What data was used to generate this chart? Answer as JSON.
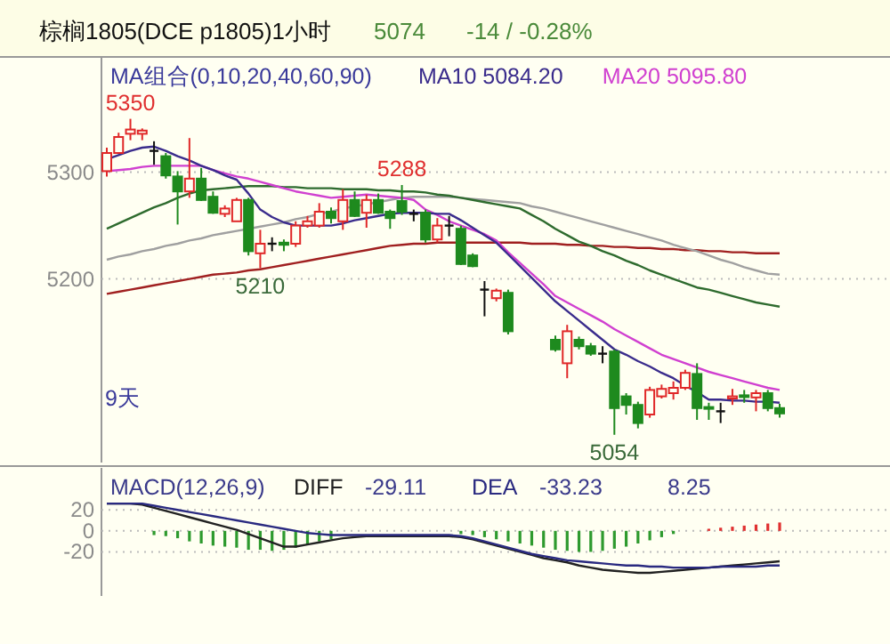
{
  "chart_data": [
    {
      "type": "candlestick",
      "title": "棕榈1805(DCE p1805)1小时",
      "subtitle": "MA组合(0,10,20,40,60,90)",
      "categories": [
        null,
        null,
        null,
        null,
        null,
        null,
        null,
        null,
        null,
        null,
        null,
        null,
        null,
        null,
        null,
        null,
        null,
        null,
        null,
        null,
        null,
        null,
        null,
        null,
        null,
        null,
        null,
        null,
        null,
        null,
        null,
        null,
        null,
        null,
        null,
        null,
        null,
        null,
        null,
        null,
        null,
        null,
        null,
        null,
        null,
        null,
        null,
        null,
        null,
        null,
        null,
        null,
        null,
        null,
        null,
        null,
        null,
        null
      ],
      "ohlc": [
        [
          5301,
          5323,
          5296,
          5318
        ],
        [
          5318,
          5337,
          5318,
          5333
        ],
        [
          5336,
          5350,
          5330,
          5340
        ],
        [
          5336,
          5341,
          5330,
          5339
        ],
        [
          5320,
          5329,
          5307,
          5320
        ],
        [
          5315,
          5318,
          5294,
          5297
        ],
        [
          5296,
          5301,
          5251,
          5282
        ],
        [
          5282,
          5332,
          5276,
          5294
        ],
        [
          5294,
          5304,
          5273,
          5274
        ],
        [
          5277,
          5282,
          5261,
          5262
        ],
        [
          5261,
          5269,
          5258,
          5266
        ],
        [
          5254,
          5276,
          5254,
          5274
        ],
        [
          5274,
          5276,
          5222,
          5226
        ],
        [
          5224,
          5246,
          5210,
          5233
        ],
        [
          5233,
          5239,
          5226,
          5233
        ],
        [
          5234,
          5237,
          5226,
          5232
        ],
        [
          5233,
          5254,
          5230,
          5250
        ],
        [
          5250,
          5259,
          5248,
          5254
        ],
        [
          5250,
          5271,
          5248,
          5263
        ],
        [
          5263,
          5267,
          5252,
          5257
        ],
        [
          5254,
          5284,
          5246,
          5274
        ],
        [
          5274,
          5282,
          5258,
          5259
        ],
        [
          5262,
          5279,
          5248,
          5274
        ],
        [
          5274,
          5280,
          5261,
          5262
        ],
        [
          5263,
          5265,
          5247,
          5257
        ],
        [
          5273,
          5288,
          5260,
          5263
        ],
        [
          5261,
          5265,
          5254,
          5261
        ],
        [
          5262,
          5265,
          5234,
          5237
        ],
        [
          5237,
          5257,
          5234,
          5250
        ],
        [
          5250,
          5259,
          5240,
          5250
        ],
        [
          5247,
          5250,
          5213,
          5214
        ],
        [
          5222,
          5224,
          5211,
          5212
        ],
        [
          5190,
          5198,
          5165,
          5190
        ],
        [
          5182,
          5191,
          5179,
          5189
        ],
        [
          5187,
          5190,
          5148,
          5151
        ],
        null,
        null,
        null,
        [
          5143,
          5147,
          5132,
          5134
        ],
        [
          5121,
          5157,
          5107,
          5151
        ],
        [
          5143,
          5146,
          5134,
          5137
        ],
        [
          5137,
          5140,
          5128,
          5130
        ],
        [
          5130,
          5137,
          5121,
          5130
        ],
        [
          5132,
          5134,
          5054,
          5079
        ],
        [
          5090,
          5093,
          5073,
          5082
        ],
        [
          5082,
          5085,
          5060,
          5065
        ],
        [
          5073,
          5099,
          5070,
          5096
        ],
        [
          5090,
          5101,
          5088,
          5097
        ],
        [
          5093,
          5104,
          5087,
          5098
        ],
        [
          5098,
          5115,
          5096,
          5112
        ],
        [
          5111,
          5121,
          5068,
          5079
        ],
        [
          5080,
          5084,
          5068,
          5079
        ],
        [
          5076,
          5084,
          5065,
          5076
        ],
        [
          5088,
          5097,
          5082,
          5090
        ],
        [
          5091,
          5096,
          5084,
          5090
        ],
        [
          5089,
          5096,
          5076,
          5093
        ],
        [
          5093,
          5096,
          5076,
          5079
        ],
        [
          5079,
          5083,
          5070,
          5074
        ]
      ],
      "series": [
        {
          "type": "line",
          "color": "#a02020",
          "values": [
            5186,
            5188,
            5190,
            5192,
            5194,
            5196,
            5198,
            5200,
            5202,
            5204,
            5205,
            5206,
            5208,
            5209,
            5211,
            5213,
            5215,
            5217,
            5219,
            5221,
            5223,
            5225,
            5227,
            5229,
            5231,
            5232,
            5233,
            5233,
            5234,
            5234,
            5234,
            5234,
            5234,
            5234,
            5234,
            5234,
            5233,
            5233,
            5233,
            5232,
            5232,
            5231,
            5231,
            5230,
            5230,
            5229,
            5229,
            5228,
            5228,
            5227,
            5227,
            5226,
            5226,
            5225,
            5225,
            5224,
            5224,
            5224
          ]
        },
        {
          "type": "line",
          "color": "#a0a0a0",
          "values": [
            5218,
            5221,
            5223,
            5226,
            5228,
            5231,
            5233,
            5236,
            5238,
            5241,
            5243,
            5245,
            5247,
            5249,
            5251,
            5253,
            5256,
            5258,
            5261,
            5263,
            5266,
            5268,
            5270,
            5272,
            5274,
            5276,
            5277,
            5277,
            5277,
            5277,
            5276,
            5275,
            5274,
            5273,
            5272,
            5271,
            5268,
            5266,
            5263,
            5260,
            5257,
            5254,
            5251,
            5248,
            5245,
            5242,
            5239,
            5236,
            5232,
            5229,
            5226,
            5222,
            5218,
            5215,
            5211,
            5208,
            5205,
            5204
          ]
        },
        {
          "type": "line",
          "color": "#2e6b2e",
          "values": [
            5247,
            5252,
            5257,
            5262,
            5267,
            5271,
            5276,
            5280,
            5283,
            5284,
            5285,
            5286,
            5287,
            5287,
            5287,
            5286,
            5286,
            5285,
            5285,
            5285,
            5284,
            5284,
            5284,
            5283,
            5283,
            5282,
            5282,
            5281,
            5279,
            5278,
            5276,
            5274,
            5272,
            5270,
            5268,
            5266,
            5260,
            5254,
            5247,
            5241,
            5235,
            5231,
            5226,
            5222,
            5217,
            5213,
            5208,
            5204,
            5200,
            5196,
            5192,
            5190,
            5187,
            5184,
            5181,
            5178,
            5176,
            5174
          ]
        },
        {
          "type": "line",
          "name": "MA20 5095.80",
          "color": "#d040d0",
          "values": [
            5301,
            5302,
            5303,
            5305,
            5306,
            5306,
            5306,
            5306,
            5306,
            5302,
            5299,
            5296,
            5294,
            5291,
            5288,
            5285,
            5282,
            5280,
            5278,
            5276,
            5277,
            5278,
            5279,
            5278,
            5277,
            5276,
            5274,
            5265,
            5260,
            5254,
            5250,
            5246,
            5242,
            5236,
            5225,
            5215,
            5205,
            5195,
            5184,
            5178,
            5172,
            5166,
            5160,
            5153,
            5147,
            5141,
            5135,
            5129,
            5125,
            5121,
            5117,
            5113,
            5110,
            5107,
            5104,
            5101,
            5098,
            5096
          ]
        },
        {
          "type": "line",
          "name": "MA10 5084.20",
          "color": "#3a2c8c",
          "values": [
            5312,
            5316,
            5320,
            5323,
            5324,
            5320,
            5315,
            5311,
            5306,
            5302,
            5297,
            5293,
            5280,
            5265,
            5258,
            5253,
            5250,
            5250,
            5250,
            5250,
            5252,
            5255,
            5257,
            5259,
            5261,
            5262,
            5262,
            5262,
            5261,
            5261,
            5255,
            5248,
            5241,
            5234,
            5223,
            5212,
            5201,
            5190,
            5179,
            5170,
            5161,
            5152,
            5143,
            5134,
            5129,
            5123,
            5118,
            5112,
            5107,
            5100,
            5094,
            5087,
            5087,
            5086,
            5086,
            5085,
            5085,
            5084
          ]
        }
      ],
      "annotations": [
        "5074",
        "-14 / -0.28%",
        {
          "text": "5350",
          "y": 5350
        },
        {
          "text": "5288",
          "y": 5288
        },
        {
          "text": "5210",
          "y": 5210
        },
        {
          "text": "5054",
          "y": 5054
        },
        "9天"
      ],
      "ylim": [
        5028,
        5408
      ],
      "yticks": [
        5200,
        5300
      ],
      "grid": "y"
    },
    {
      "type": "bar",
      "title": "MACD(12,26,9)",
      "categories": [
        null,
        null,
        null,
        null,
        null,
        null,
        null,
        null,
        null,
        null,
        null,
        null,
        null,
        null,
        null,
        null,
        null,
        null,
        null,
        null,
        null,
        null,
        null,
        null,
        null,
        null,
        null,
        null,
        null,
        null,
        null,
        null,
        null,
        null,
        null,
        null,
        null,
        null,
        null,
        null,
        null,
        null,
        null,
        null,
        null,
        null,
        null,
        null,
        null,
        null,
        null,
        null,
        null,
        null,
        null,
        null,
        null,
        null
      ],
      "series": [
        {
          "type": "bar",
          "colors": [
            null,
            null,
            null,
            null,
            "#2e9a2e",
            "#2e9a2e",
            "#2e9a2e",
            "#2e9a2e",
            "#2e9a2e",
            "#2e9a2e",
            "#2e9a2e",
            "#2e9a2e",
            "#2e9a2e",
            "#2e9a2e",
            "#2e9a2e",
            "#2e9a2e",
            "#2e9a2e",
            "#2e9a2e",
            "#2e9a2e",
            "#2e9a2e",
            null,
            null,
            null,
            null,
            null,
            null,
            null,
            null,
            null,
            null,
            "#2e9a2e",
            "#2e9a2e",
            "#2e9a2e",
            "#2e9a2e",
            "#2e9a2e",
            "#2e9a2e",
            "#2e9a2e",
            "#2e9a2e",
            "#2e9a2e",
            "#2e9a2e",
            "#2e9a2e",
            "#2e9a2e",
            "#2e9a2e",
            "#2e9a2e",
            "#2e9a2e",
            "#2e9a2e",
            "#2e9a2e",
            "#2e9a2e",
            "#2e9a2e",
            null,
            null,
            "#e03030",
            "#e03030",
            "#e03030",
            "#e03030",
            "#e03030",
            "#e03030",
            "#e03030"
          ],
          "values": [
            null,
            null,
            null,
            null,
            -4,
            -5,
            -7,
            -10,
            -12,
            -14,
            -15,
            -16,
            -18,
            -18,
            -19,
            -18,
            -16,
            -13,
            -10,
            -8,
            null,
            null,
            null,
            null,
            null,
            null,
            null,
            null,
            null,
            null,
            -3,
            -4,
            -6,
            -8,
            -10,
            -12,
            -14,
            -16,
            -18,
            -19,
            -20,
            -20,
            -19,
            -17,
            -15,
            -12,
            -9,
            -6,
            -3,
            null,
            null,
            2,
            3,
            4,
            5,
            6,
            7,
            8
          ]
        },
        {
          "type": "line",
          "name": "DIFF",
          "color": "#222222",
          "values": [
            26,
            26,
            26,
            25,
            22,
            19,
            16,
            13,
            10,
            7,
            4,
            1,
            -3,
            -7,
            -11,
            -15,
            -15,
            -13,
            -11,
            -9,
            -7,
            -6,
            -5,
            -5,
            -5,
            -5,
            -5,
            -5,
            -5,
            -5,
            -6,
            -8,
            -11,
            -14,
            -17,
            -20,
            -23,
            -26,
            -28,
            -30,
            -33,
            -35,
            -37,
            -38,
            -39,
            -40,
            -40,
            -39,
            -38,
            -37,
            -36,
            -35,
            -34,
            -33,
            -32,
            -31,
            -30,
            -29
          ]
        },
        {
          "type": "line",
          "name": "DEA",
          "color": "#2a2a80",
          "values": [
            26,
            26,
            26,
            26,
            24,
            22,
            20,
            18,
            16,
            14,
            12,
            10,
            8,
            6,
            4,
            2,
            0,
            -2,
            -3,
            -4,
            -4,
            -4,
            -4,
            -4,
            -4,
            -4,
            -4,
            -4,
            -4,
            -4,
            -5,
            -7,
            -10,
            -13,
            -16,
            -19,
            -22,
            -24,
            -26,
            -28,
            -29,
            -30,
            -31,
            -32,
            -33,
            -33,
            -34,
            -34,
            -35,
            -35,
            -35,
            -35,
            -34,
            -34,
            -34,
            -34,
            -33,
            -33
          ]
        }
      ],
      "annotations": [
        "-29.11",
        "-33.23",
        "8.25"
      ],
      "ylim": [
        -62,
        60
      ],
      "yticks": [
        20,
        0,
        -20
      ],
      "grid": "y"
    }
  ]
}
